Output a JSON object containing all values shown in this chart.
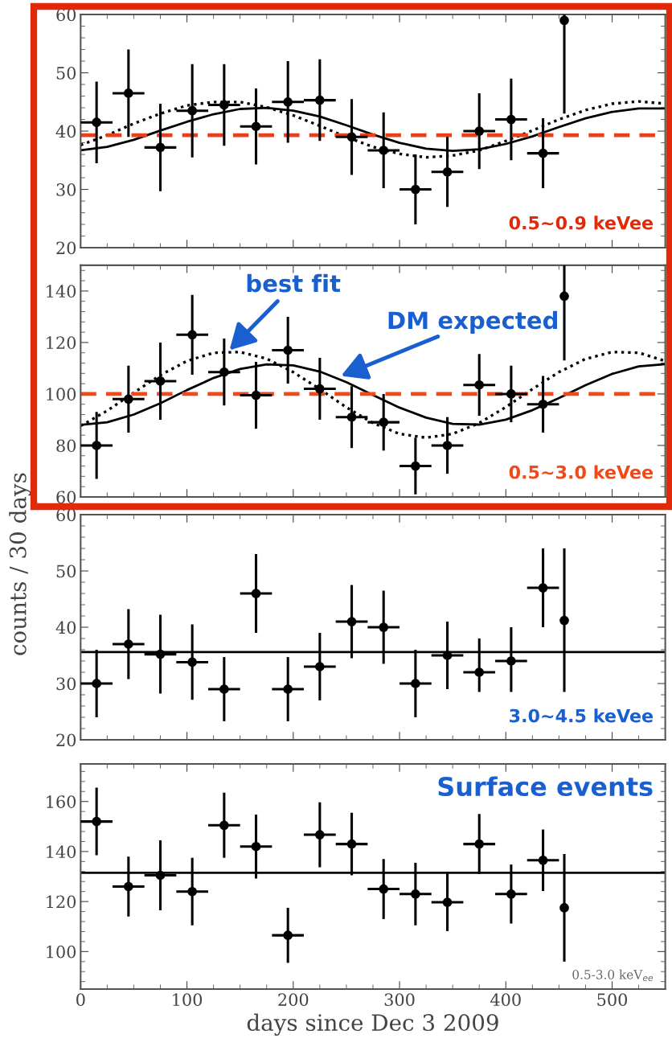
{
  "chart_data": [
    {
      "type": "scatter",
      "xlim": [
        0,
        550
      ],
      "xticks": [
        0,
        100,
        200,
        300,
        400,
        500
      ],
      "ylim": [
        20,
        60
      ],
      "yticks": [
        20,
        30,
        40,
        50,
        60
      ],
      "tick_labels": "y",
      "grid": false,
      "legend": false,
      "marker": "circle",
      "annotations": [
        "0.5~0.9 keVee"
      ],
      "ref_lines": [
        {
          "axis": "y",
          "value": 39.3,
          "color": "#e8401c",
          "line_style": "dashed"
        }
      ],
      "x": [
        15,
        45,
        75,
        105,
        135,
        165,
        195,
        225,
        255,
        285,
        315,
        345,
        375,
        405,
        435,
        455
      ],
      "series": [
        {
          "color": "#000000",
          "values": [
            41.5,
            46.5,
            37.2,
            43.5,
            44.5,
            40.8,
            45,
            45.3,
            39,
            36.7,
            30,
            33,
            40,
            42,
            36.2,
            59
          ],
          "errors": [
            7,
            7.5,
            7.5,
            8,
            7,
            6.5,
            7,
            7,
            6.5,
            6.5,
            6,
            6,
            6.5,
            7,
            6,
            [
              43,
              60
            ]
          ],
          "xerrors": [
            15,
            15,
            15,
            15,
            15,
            15,
            15,
            15,
            15,
            15,
            15,
            15,
            15,
            15,
            15,
            null
          ]
        },
        {
          "type": "line",
          "color": "#000000",
          "line_style": "solid",
          "marker": "none",
          "x": [
            0,
            25,
            50,
            75,
            100,
            125,
            150,
            175,
            200,
            225,
            250,
            275,
            300,
            325,
            350,
            375,
            400,
            425,
            450,
            475,
            500,
            525,
            550
          ],
          "values": [
            36.7,
            37.3,
            38.5,
            40.1,
            41.6,
            42.9,
            43.8,
            44.0,
            43.5,
            42.5,
            41.0,
            39.4,
            38.0,
            37.0,
            36.6,
            36.9,
            37.8,
            39.1,
            40.7,
            42.2,
            43.3,
            43.9,
            43.9
          ]
        },
        {
          "type": "line",
          "color": "#000000",
          "line_style": "dotted",
          "marker": "none",
          "x": [
            0,
            25,
            50,
            75,
            100,
            125,
            150,
            175,
            200,
            225,
            250,
            275,
            300,
            325,
            350,
            375,
            400,
            425,
            450,
            475,
            500,
            525,
            550
          ],
          "values": [
            37.6,
            39.3,
            41.3,
            43.0,
            44.4,
            45.0,
            45.0,
            44.1,
            42.7,
            40.9,
            39.0,
            37.3,
            36.1,
            35.5,
            35.8,
            36.7,
            38.3,
            40.1,
            42.0,
            43.6,
            44.7,
            45.1,
            44.7
          ]
        }
      ]
    },
    {
      "type": "scatter",
      "xlim": [
        0,
        550
      ],
      "xticks": [
        0,
        100,
        200,
        300,
        400,
        500
      ],
      "ylim": [
        60,
        150
      ],
      "yticks": [
        60,
        80,
        100,
        120,
        140
      ],
      "tick_labels": "y",
      "grid": false,
      "legend": false,
      "marker": "circle",
      "annotations": [
        "0.5~3.0 keVee",
        {
          "text": "best fit",
          "x": 140,
          "y": 117
        },
        {
          "text": "DM expected",
          "x": 245,
          "y": 107
        }
      ],
      "ref_lines": [
        {
          "axis": "y",
          "value": 100,
          "color": "#f04a1a",
          "line_style": "dashed"
        }
      ],
      "x": [
        15,
        45,
        75,
        105,
        135,
        165,
        195,
        225,
        255,
        285,
        315,
        345,
        375,
        405,
        435,
        455
      ],
      "series": [
        {
          "color": "#000000",
          "values": [
            80,
            98,
            105,
            123,
            108.5,
            99.5,
            117,
            102,
            91,
            89,
            72,
            80,
            103.5,
            100,
            96,
            138
          ],
          "errors": [
            13,
            13,
            15,
            15.5,
            13,
            13,
            13,
            12,
            12,
            11,
            11,
            11,
            12,
            11,
            11,
            [
              113,
              150
            ]
          ],
          "xerrors": [
            15,
            15,
            15,
            15,
            15,
            15,
            15,
            15,
            15,
            15,
            15,
            15,
            15,
            15,
            15,
            null
          ]
        },
        {
          "type": "line",
          "color": "#000000",
          "line_style": "solid",
          "marker": "none",
          "x": [
            0,
            25,
            50,
            75,
            100,
            125,
            150,
            175,
            200,
            225,
            250,
            275,
            300,
            325,
            350,
            375,
            400,
            425,
            450,
            475,
            500,
            525,
            550
          ],
          "values": [
            88.0,
            89.0,
            92.0,
            96.4,
            101.5,
            106.2,
            109.7,
            111.5,
            111.1,
            108.7,
            104.6,
            99.6,
            94.7,
            90.8,
            88.4,
            88.1,
            90.0,
            93.7,
            98.4,
            103.4,
            107.8,
            110.7,
            111.6
          ]
        },
        {
          "type": "line",
          "color": "#000000",
          "line_style": "dotted",
          "marker": "none",
          "x": [
            0,
            25,
            50,
            75,
            100,
            125,
            150,
            175,
            200,
            225,
            250,
            275,
            300,
            325,
            350,
            375,
            400,
            425,
            450,
            475,
            500,
            525,
            550
          ],
          "values": [
            87.6,
            93.5,
            100.5,
            107.3,
            112.8,
            116.0,
            116.3,
            113.7,
            108.5,
            101.9,
            94.8,
            88.7,
            84.5,
            83.0,
            84.5,
            88.7,
            94.9,
            101.9,
            108.5,
            113.6,
            116.3,
            116.0,
            112.8
          ]
        }
      ]
    },
    {
      "type": "scatter",
      "ylabel": "counts / 30 days",
      "xlim": [
        0,
        550
      ],
      "xticks": [
        0,
        100,
        200,
        300,
        400,
        500
      ],
      "ylim": [
        20,
        60
      ],
      "yticks": [
        20,
        30,
        40,
        50,
        60
      ],
      "tick_labels": "y",
      "grid": false,
      "legend": false,
      "marker": "circle",
      "annotations": [
        "3.0~4.5 keVee"
      ],
      "x": [
        15,
        45,
        75,
        105,
        135,
        165,
        195,
        225,
        255,
        285,
        315,
        345,
        375,
        405,
        435,
        455
      ],
      "series": [
        {
          "color": "#000000",
          "values": [
            30,
            37,
            35.2,
            33.8,
            29,
            46,
            29,
            33,
            41,
            40,
            30,
            35,
            32,
            34,
            47,
            41.2
          ],
          "errors": [
            6,
            6.2,
            7,
            6.7,
            5.7,
            7,
            5.7,
            6,
            6.5,
            6.5,
            6,
            6,
            [
              28.5,
              38
            ],
            [
              28.5,
              40
            ],
            7,
            [
              28.5,
              54
            ]
          ],
          "xerrors": [
            15,
            15,
            15,
            15,
            15,
            15,
            15,
            15,
            15,
            15,
            15,
            15,
            15,
            15,
            15,
            null
          ]
        },
        {
          "type": "line",
          "color": "#000000",
          "line_style": "solid",
          "marker": "none",
          "x": [
            0,
            550
          ],
          "values": [
            35.6,
            35.6
          ]
        }
      ]
    },
    {
      "type": "scatter",
      "xlabel": "days since Dec 3 2009",
      "xlim": [
        0,
        550
      ],
      "xticks": [
        0,
        100,
        200,
        300,
        400,
        500
      ],
      "ylim": [
        85,
        175
      ],
      "yticks": [
        100,
        120,
        140,
        160
      ],
      "grid": false,
      "legend": false,
      "marker": "circle",
      "annotations": [
        "Surface events",
        "0.5-3.0 keV$_{ee}$"
      ],
      "x": [
        15,
        45,
        75,
        105,
        135,
        165,
        195,
        225,
        255,
        285,
        315,
        345,
        375,
        405,
        435,
        455
      ],
      "series": [
        {
          "color": "#000000",
          "values": [
            152,
            126,
            130.5,
            124,
            150.5,
            142,
            106.5,
            146.7,
            143,
            125,
            123,
            119.7,
            143,
            123,
            136.5,
            117.5
          ],
          "errors": [
            13.5,
            12,
            14,
            13.5,
            13,
            12.8,
            11,
            13,
            12.5,
            12,
            12.5,
            11.5,
            12,
            11.8,
            12.3,
            21.5
          ],
          "xerrors": [
            15,
            15,
            15,
            15,
            15,
            15,
            15,
            15,
            15,
            15,
            15,
            15,
            15,
            15,
            15,
            null
          ]
        },
        {
          "type": "line",
          "color": "#000000",
          "line_style": "solid",
          "marker": "none",
          "x": [
            0,
            550
          ],
          "values": [
            131.5,
            131.5
          ]
        }
      ]
    }
  ]
}
